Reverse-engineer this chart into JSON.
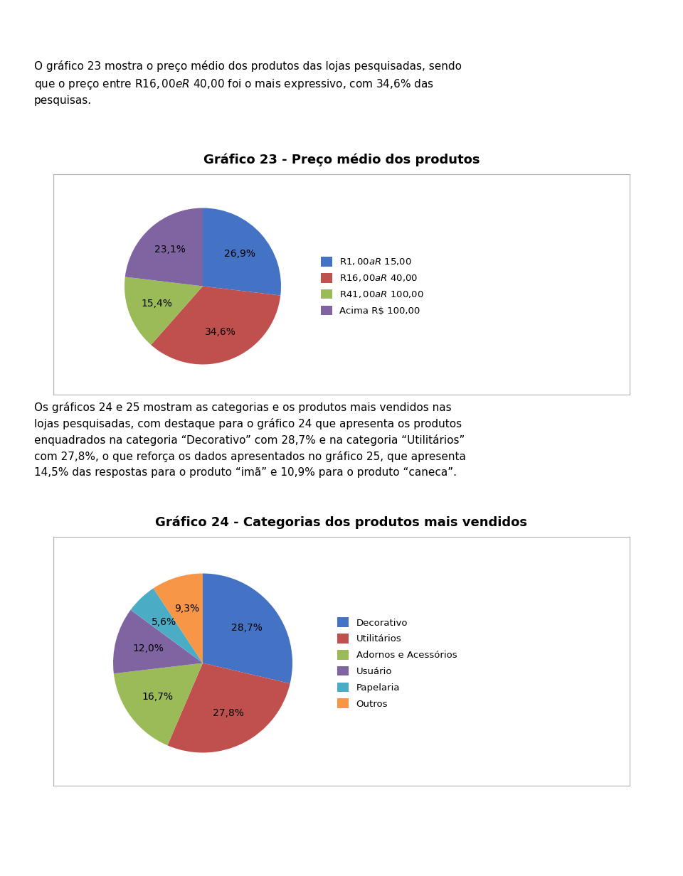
{
  "page_bg": "#ffffff",
  "header_text": "O gráfico 23 mostra o preço médio dos produtos das lojas pesquisadas, sendo\nque o preço entre R$ 16,00 e R$ 40,00 foi o mais expressivo, com 34,6% das\npesquisas.",
  "chart1_title": "Gráfico 23 - Preço médio dos produtos",
  "chart1_values": [
    26.9,
    34.6,
    15.4,
    23.1
  ],
  "chart1_pct_labels": [
    "26,9%",
    "34,6%",
    "15,4%",
    "23,1%"
  ],
  "chart1_colors": [
    "#4472C4",
    "#C0504D",
    "#9BBB59",
    "#8064A2"
  ],
  "chart1_legend_labels": [
    "R$1,00 a R$ 15,00",
    "R$16,00 a R$ 40,00",
    "R$41,00 a R$ 100,00",
    "Acima R$ 100,00"
  ],
  "middle_text": "Os gráficos 24 e 25 mostram as categorias e os produtos mais vendidos nas\nlojas pesquisadas, com destaque para o gráfico 24 que apresenta os produtos\nenquadrados na categoria “Decorativo” com 28,7% e na categoria “Utilitários”\ncom 27,8%, o que reforça os dados apresentados no gráfico 25, que apresenta\n14,5% das respostas para o produto “imã” e 10,9% para o produto “caneca”.",
  "chart2_title": "Gráfico 24 - Categorias dos produtos mais vendidos",
  "chart2_values": [
    28.7,
    27.8,
    16.7,
    12.0,
    5.6,
    9.3
  ],
  "chart2_pct_labels": [
    "28,7%",
    "27,8%",
    "16,7%",
    "12,0%",
    "5,6%",
    "9,3%"
  ],
  "chart2_colors": [
    "#4472C4",
    "#C0504D",
    "#9BBB59",
    "#8064A2",
    "#4BACC6",
    "#F79646"
  ],
  "chart2_legend_labels": [
    "Decorativo",
    "Utilitários",
    "Adornos e Acessórios",
    "Usuário",
    "Papelaria",
    "Outros"
  ]
}
